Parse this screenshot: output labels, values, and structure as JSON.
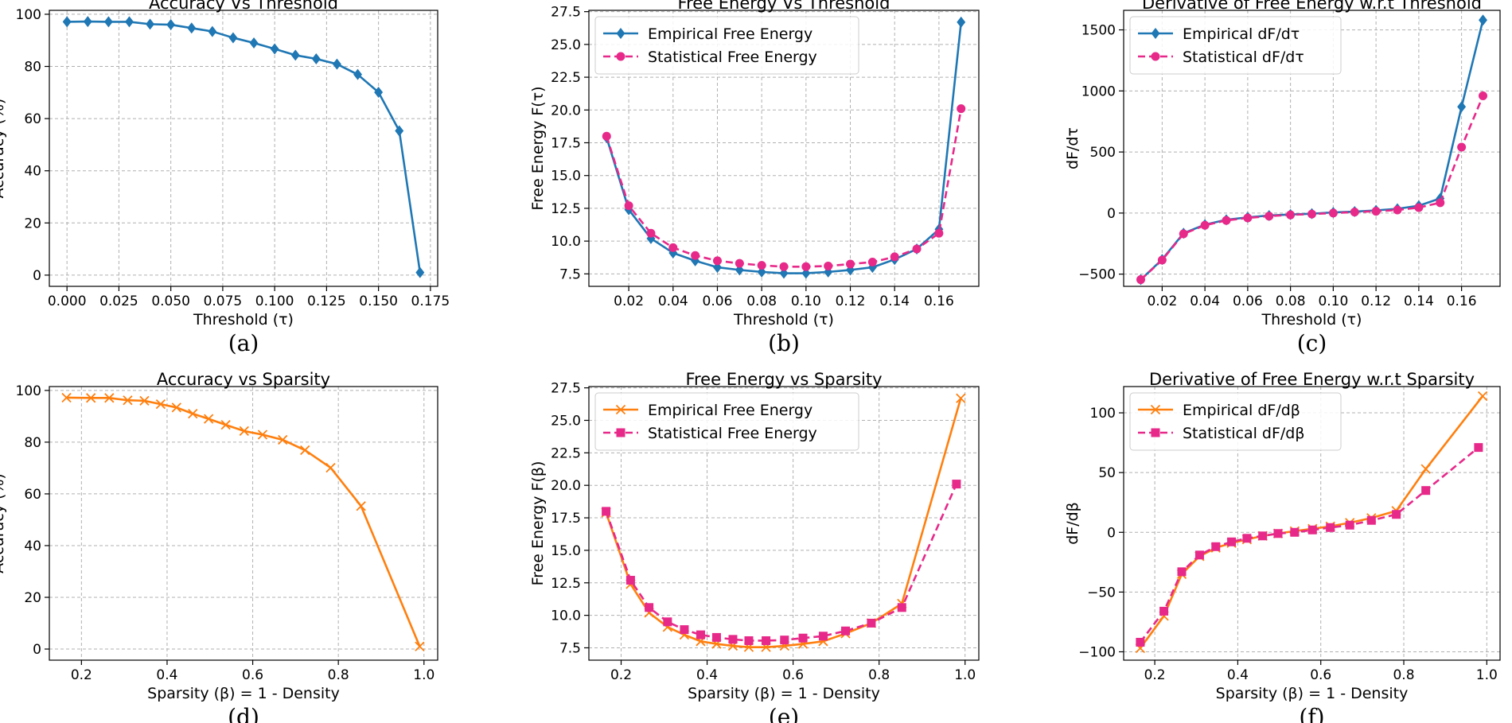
{
  "chart_data": [
    {
      "type": "line",
      "title": "Accuracy Vs Threshold",
      "xlabel": "Threshold (τ)",
      "ylabel": "Accuracy (%)",
      "caption": "(a)",
      "xlim": [
        -0.0085,
        0.1785
      ],
      "ylim": [
        -4.3,
        101.5
      ],
      "xticks": [
        0.0,
        0.025,
        0.05,
        0.075,
        0.1,
        0.125,
        0.15,
        0.175
      ],
      "xticklabels": [
        "0.000",
        "0.025",
        "0.050",
        "0.075",
        "0.100",
        "0.125",
        "0.150",
        "0.175"
      ],
      "yticks": [
        0,
        20,
        40,
        60,
        80,
        100
      ],
      "yticklabels": [
        "0",
        "20",
        "40",
        "60",
        "80",
        "100"
      ],
      "grid": true,
      "series": [
        {
          "name": "Accuracy",
          "color": "#1f77b4",
          "marker": "diamond",
          "dashed": false,
          "x": [
            0.0,
            0.01,
            0.02,
            0.03,
            0.04,
            0.05,
            0.06,
            0.07,
            0.08,
            0.09,
            0.1,
            0.11,
            0.12,
            0.13,
            0.14,
            0.15,
            0.16,
            0.17
          ],
          "y": [
            97.1,
            97.2,
            97.1,
            97.1,
            96.2,
            96.0,
            94.7,
            93.4,
            91.0,
            89.0,
            86.7,
            84.3,
            82.9,
            80.9,
            76.9,
            70.1,
            55.3,
            1.0
          ]
        }
      ]
    },
    {
      "type": "line",
      "title": "Free Energy Vs Threshold",
      "xlabel": "Threshold (τ)",
      "ylabel": "Free Energy F(τ)",
      "caption": "(b)",
      "xlim": [
        0.002,
        0.178
      ],
      "ylim": [
        6.55,
        27.6
      ],
      "xticks": [
        0.02,
        0.04,
        0.06,
        0.08,
        0.1,
        0.12,
        0.14,
        0.16
      ],
      "xticklabels": [
        "0.02",
        "0.04",
        "0.06",
        "0.08",
        "0.10",
        "0.12",
        "0.14",
        "0.16"
      ],
      "yticks": [
        7.5,
        10.0,
        12.5,
        15.0,
        17.5,
        20.0,
        22.5,
        25.0,
        27.5
      ],
      "yticklabels": [
        "7.5",
        "10.0",
        "12.5",
        "15.0",
        "17.5",
        "20.0",
        "22.5",
        "25.0",
        "27.5"
      ],
      "grid": true,
      "legend": "top-left",
      "series": [
        {
          "name": "Empirical Free Energy",
          "color": "#1f77b4",
          "marker": "diamond",
          "dashed": false,
          "x": [
            0.01,
            0.02,
            0.03,
            0.04,
            0.05,
            0.06,
            0.07,
            0.08,
            0.09,
            0.1,
            0.11,
            0.12,
            0.13,
            0.14,
            0.15,
            0.16,
            0.17
          ],
          "y": [
            17.9,
            12.4,
            10.2,
            9.1,
            8.5,
            8.0,
            7.8,
            7.65,
            7.55,
            7.55,
            7.65,
            7.8,
            8.0,
            8.6,
            9.4,
            10.9,
            26.7
          ]
        },
        {
          "name": "Statistical Free Energy",
          "color": "#e7298a",
          "marker": "circle",
          "dashed": true,
          "x": [
            0.01,
            0.02,
            0.03,
            0.04,
            0.05,
            0.06,
            0.07,
            0.08,
            0.09,
            0.1,
            0.11,
            0.12,
            0.13,
            0.14,
            0.15,
            0.16,
            0.17
          ],
          "y": [
            18.0,
            12.7,
            10.6,
            9.5,
            8.9,
            8.5,
            8.3,
            8.15,
            8.05,
            8.05,
            8.1,
            8.25,
            8.4,
            8.8,
            9.4,
            10.6,
            20.1
          ]
        }
      ]
    },
    {
      "type": "line",
      "title": "Derivative of Free Energy w.r.t Threshold",
      "xlabel": "Threshold (τ)",
      "ylabel": "dF/dτ",
      "caption": "(c)",
      "xlim": [
        0.002,
        0.178
      ],
      "ylim": [
        -600,
        1660
      ],
      "xticks": [
        0.02,
        0.04,
        0.06,
        0.08,
        0.1,
        0.12,
        0.14,
        0.16
      ],
      "xticklabels": [
        "0.02",
        "0.04",
        "0.06",
        "0.08",
        "0.10",
        "0.12",
        "0.14",
        "0.16"
      ],
      "yticks": [
        -500,
        0,
        500,
        1000,
        1500
      ],
      "yticklabels": [
        "−500",
        "0",
        "500",
        "1000",
        "1500"
      ],
      "grid": true,
      "legend": "top-left",
      "series": [
        {
          "name": "Empirical dF/dτ",
          "color": "#1f77b4",
          "marker": "diamond",
          "dashed": false,
          "x": [
            0.01,
            0.02,
            0.03,
            0.04,
            0.05,
            0.06,
            0.07,
            0.08,
            0.09,
            0.1,
            0.11,
            0.12,
            0.13,
            0.14,
            0.15,
            0.16,
            0.17
          ],
          "y": [
            -545,
            -380,
            -165,
            -95,
            -55,
            -35,
            -20,
            -12,
            -5,
            5,
            12,
            22,
            35,
            60,
            120,
            870,
            1580
          ]
        },
        {
          "name": "Statistical dF/dτ",
          "color": "#e7298a",
          "marker": "circle",
          "dashed": true,
          "x": [
            0.01,
            0.02,
            0.03,
            0.04,
            0.05,
            0.06,
            0.07,
            0.08,
            0.09,
            0.1,
            0.11,
            0.12,
            0.13,
            0.14,
            0.15,
            0.16,
            0.17
          ],
          "y": [
            -545,
            -385,
            -170,
            -100,
            -60,
            -40,
            -25,
            -15,
            -8,
            0,
            8,
            15,
            25,
            45,
            85,
            540,
            960
          ]
        }
      ]
    },
    {
      "type": "line",
      "title": "Accuracy vs Sparsity",
      "xlabel": "Sparsity (β) = 1 - Density",
      "ylabel": "Accuracy (%)",
      "caption": "(d)",
      "xlim": [
        0.125,
        1.032
      ],
      "ylim": [
        -4.3,
        101.5
      ],
      "xticks": [
        0.2,
        0.4,
        0.6,
        0.8,
        1.0
      ],
      "xticklabels": [
        "0.2",
        "0.4",
        "0.6",
        "0.8",
        "1.0"
      ],
      "yticks": [
        0,
        20,
        40,
        60,
        80,
        100
      ],
      "yticklabels": [
        "0",
        "20",
        "40",
        "60",
        "80",
        "100"
      ],
      "grid": true,
      "series": [
        {
          "name": "Accuracy",
          "color": "#ff7f0e",
          "marker": "x",
          "dashed": false,
          "x": [
            0.165,
            0.222,
            0.265,
            0.308,
            0.347,
            0.385,
            0.422,
            0.46,
            0.497,
            0.537,
            0.58,
            0.623,
            0.67,
            0.722,
            0.782,
            0.853,
            0.99
          ],
          "y": [
            97.2,
            97.1,
            97.1,
            96.2,
            96.0,
            94.7,
            93.4,
            91.0,
            89.0,
            86.7,
            84.3,
            82.9,
            80.9,
            76.9,
            70.1,
            55.3,
            1.0
          ]
        }
      ]
    },
    {
      "type": "line",
      "title": "Free Energy vs Sparsity",
      "xlabel": "Sparsity (β) = 1 - Density",
      "ylabel": "Free Energy F(β)",
      "caption": "(e)",
      "xlim": [
        0.125,
        1.032
      ],
      "ylim": [
        6.55,
        27.6
      ],
      "xticks": [
        0.2,
        0.4,
        0.6,
        0.8,
        1.0
      ],
      "xticklabels": [
        "0.2",
        "0.4",
        "0.6",
        "0.8",
        "1.0"
      ],
      "yticks": [
        7.5,
        10.0,
        12.5,
        15.0,
        17.5,
        20.0,
        22.5,
        25.0,
        27.5
      ],
      "yticklabels": [
        "7.5",
        "10.0",
        "12.5",
        "15.0",
        "17.5",
        "20.0",
        "22.5",
        "25.0",
        "27.5"
      ],
      "grid": true,
      "legend": "top-left",
      "series": [
        {
          "name": "Empirical Free Energy",
          "color": "#ff7f0e",
          "marker": "x",
          "dashed": false,
          "x": [
            0.165,
            0.222,
            0.265,
            0.308,
            0.347,
            0.385,
            0.422,
            0.46,
            0.497,
            0.537,
            0.58,
            0.623,
            0.67,
            0.722,
            0.782,
            0.853,
            0.99
          ],
          "y": [
            17.9,
            12.4,
            10.2,
            9.1,
            8.5,
            8.0,
            7.8,
            7.65,
            7.55,
            7.55,
            7.65,
            7.8,
            8.0,
            8.6,
            9.4,
            10.9,
            26.7
          ]
        },
        {
          "name": "Statistical Free Energy",
          "color": "#e7298a",
          "marker": "square",
          "dashed": true,
          "x": [
            0.165,
            0.222,
            0.265,
            0.308,
            0.347,
            0.385,
            0.422,
            0.46,
            0.497,
            0.537,
            0.58,
            0.623,
            0.67,
            0.722,
            0.782,
            0.853,
            0.98
          ],
          "y": [
            18.0,
            12.7,
            10.6,
            9.5,
            8.9,
            8.5,
            8.3,
            8.15,
            8.05,
            8.05,
            8.1,
            8.25,
            8.4,
            8.8,
            9.4,
            10.6,
            20.1
          ]
        }
      ]
    },
    {
      "type": "line",
      "title": "Derivative of Free Energy w.r.t Sparsity",
      "xlabel": "Sparsity (β) = 1 - Density",
      "ylabel": "dF/dβ",
      "caption": "(f)",
      "xlim": [
        0.125,
        1.032
      ],
      "ylim": [
        -107,
        122
      ],
      "xticks": [
        0.2,
        0.4,
        0.6,
        0.8,
        1.0
      ],
      "xticklabels": [
        "0.2",
        "0.4",
        "0.6",
        "0.8",
        "1.0"
      ],
      "yticks": [
        -100,
        -50,
        0,
        50,
        100
      ],
      "yticklabels": [
        "−100",
        "−50",
        "0",
        "50",
        "100"
      ],
      "grid": true,
      "legend": "top-left",
      "series": [
        {
          "name": "Empirical dF/dβ",
          "color": "#ff7f0e",
          "marker": "x",
          "dashed": false,
          "x": [
            0.165,
            0.222,
            0.265,
            0.308,
            0.347,
            0.385,
            0.422,
            0.46,
            0.497,
            0.537,
            0.58,
            0.623,
            0.67,
            0.722,
            0.782,
            0.853,
            0.99
          ],
          "y": [
            -97,
            -70,
            -35,
            -20,
            -13,
            -9,
            -6,
            -3,
            -1,
            1,
            3,
            5,
            8,
            12,
            18,
            53,
            114
          ]
        },
        {
          "name": "Statistical dF/dβ",
          "color": "#e7298a",
          "marker": "square",
          "dashed": true,
          "x": [
            0.165,
            0.222,
            0.265,
            0.308,
            0.347,
            0.385,
            0.422,
            0.46,
            0.497,
            0.537,
            0.58,
            0.623,
            0.67,
            0.722,
            0.782,
            0.853,
            0.98
          ],
          "y": [
            -92,
            -66,
            -33,
            -19,
            -12,
            -8,
            -5,
            -3,
            -1,
            0,
            2,
            4,
            6,
            10,
            15,
            35,
            71
          ]
        }
      ]
    }
  ]
}
